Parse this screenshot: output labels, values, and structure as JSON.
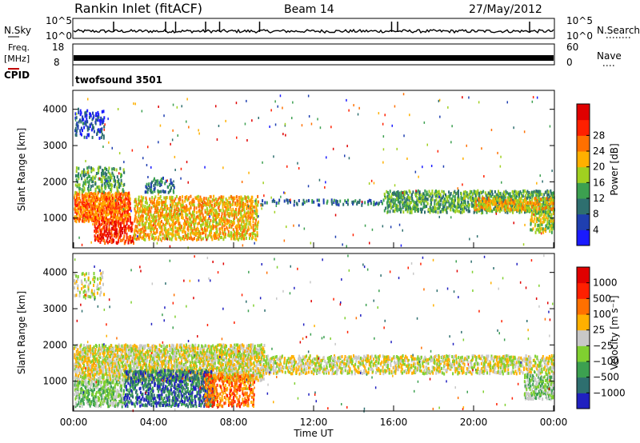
{
  "header": {
    "site": "Rankin Inlet (fitACF)",
    "beam": "Beam 14",
    "date": "27/May/2012"
  },
  "chart_data": [
    {
      "type": "line",
      "panel": "noise",
      "left_label": "N.Sky",
      "right_label": "N.Search",
      "yticks_left": [
        "10^5",
        "10^0"
      ],
      "yticks_right": [
        "10^5",
        "10^0"
      ],
      "spikes_hours": [
        2.0,
        4.6,
        5.1,
        6.6,
        7.3,
        9.3,
        15.9,
        16.2,
        22.8
      ]
    },
    {
      "type": "line",
      "panel": "frequency",
      "left_label": "Freq.",
      "left_unit": "[MHz]",
      "right_label": "Nave",
      "yticks_left": [
        "18",
        "8"
      ],
      "yticks_right": [
        "60",
        "0"
      ]
    },
    {
      "type": "table",
      "panel": "cpid",
      "label": "CPID",
      "value": "twofsound 3501"
    },
    {
      "type": "heatmap",
      "panel": "power",
      "ylabel": "Slant Range [km]",
      "yticks": [
        "1000",
        "2000",
        "3000",
        "4000"
      ],
      "ylim": [
        200,
        4500
      ],
      "xlim": [
        0,
        24
      ],
      "colorbar_label": "Power [dB]",
      "colorbar_ticks": [
        "4",
        "8",
        "12",
        "16",
        "20",
        "24",
        "28"
      ],
      "colors": [
        "#1a1aff",
        "#1f3fb0",
        "#2e6f6f",
        "#3ca050",
        "#a0d020",
        "#ffb000",
        "#ff7000",
        "#ff2000",
        "#e00000"
      ],
      "regions": [
        {
          "t0": 0.0,
          "t1": 2.8,
          "r0": 900,
          "r1": 1700,
          "density": 0.85,
          "level": 6
        },
        {
          "t0": 0.0,
          "t1": 2.5,
          "r0": 1700,
          "r1": 2400,
          "density": 0.35,
          "level": 3
        },
        {
          "t0": 0.0,
          "t1": 1.5,
          "r0": 3200,
          "r1": 4000,
          "density": 0.3,
          "level": 1
        },
        {
          "t0": 1.0,
          "t1": 3.0,
          "r0": 300,
          "r1": 900,
          "density": 0.55,
          "level": 7
        },
        {
          "t0": 3.0,
          "t1": 9.2,
          "r0": 400,
          "r1": 1600,
          "density": 0.55,
          "level": 5
        },
        {
          "t0": 3.5,
          "t1": 5.0,
          "r0": 1700,
          "r1": 2100,
          "density": 0.3,
          "level": 2
        },
        {
          "t0": 9.2,
          "t1": 15.5,
          "r0": 1350,
          "r1": 1500,
          "density": 0.3,
          "level": 2
        },
        {
          "t0": 15.5,
          "t1": 24.0,
          "r0": 1150,
          "r1": 1750,
          "density": 0.6,
          "level": 3
        },
        {
          "t0": 20.0,
          "t1": 24.0,
          "r0": 1200,
          "r1": 1550,
          "density": 0.5,
          "level": 5
        },
        {
          "t0": 22.8,
          "t1": 24.0,
          "r0": 600,
          "r1": 1200,
          "density": 0.6,
          "level": 4
        }
      ]
    },
    {
      "type": "heatmap",
      "panel": "velocity",
      "ylabel": "Slant Range [km]",
      "yticks": [
        "1000",
        "2000",
        "3000",
        "4000"
      ],
      "ylim": [
        200,
        4500
      ],
      "xlim": [
        0,
        24
      ],
      "xticks": [
        "00:00",
        "04:00",
        "08:00",
        "12:00",
        "16:00",
        "20:00",
        "00:00"
      ],
      "xlabel": "Time UT",
      "colorbar_label": "Velocity [m s⁻¹]",
      "colorbar_ticks": [
        "1000",
        "500",
        "100",
        "25",
        "−25",
        "−100",
        "−500",
        "−1000"
      ],
      "colors": [
        "#2020c0",
        "#2e6f6f",
        "#3ca050",
        "#80d030",
        "#c8c8c8",
        "#ffb000",
        "#ff7000",
        "#ff2000",
        "#e00000"
      ],
      "regions": [
        {
          "t0": 0.0,
          "t1": 9.5,
          "r0": 1000,
          "r1": 2000,
          "density": 0.75,
          "level": 4
        },
        {
          "t0": 9.5,
          "t1": 24.0,
          "r0": 1200,
          "r1": 1700,
          "density": 0.55,
          "level": 4
        },
        {
          "t0": 0.0,
          "t1": 2.5,
          "r0": 300,
          "r1": 1000,
          "density": 0.65,
          "level": 3
        },
        {
          "t0": 2.5,
          "t1": 7.0,
          "r0": 300,
          "r1": 1300,
          "density": 0.55,
          "level": 1
        },
        {
          "t0": 6.5,
          "t1": 9.0,
          "r0": 300,
          "r1": 1200,
          "density": 0.45,
          "level": 6
        },
        {
          "t0": 0.0,
          "t1": 1.5,
          "r0": 3300,
          "r1": 4000,
          "density": 0.25,
          "level": 4
        },
        {
          "t0": 22.5,
          "t1": 24.0,
          "r0": 500,
          "r1": 1200,
          "density": 0.6,
          "level": 3
        }
      ]
    }
  ]
}
